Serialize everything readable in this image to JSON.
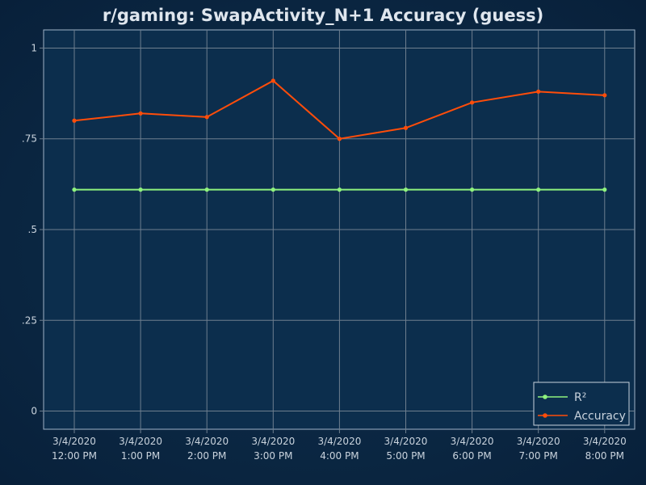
{
  "chart_data": {
    "type": "line",
    "title": "r/gaming: SwapActivity_N+1 Accuracy (guess)",
    "xlabel": "",
    "ylabel": "",
    "categories": [
      [
        "3/4/2020",
        "12:00 PM"
      ],
      [
        "3/4/2020",
        "1:00 PM"
      ],
      [
        "3/4/2020",
        "2:00 PM"
      ],
      [
        "3/4/2020",
        "3:00 PM"
      ],
      [
        "3/4/2020",
        "4:00 PM"
      ],
      [
        "3/4/2020",
        "5:00 PM"
      ],
      [
        "3/4/2020",
        "6:00 PM"
      ],
      [
        "3/4/2020",
        "7:00 PM"
      ],
      [
        "3/4/2020",
        "8:00 PM"
      ]
    ],
    "ylim": [
      -0.05,
      1.05
    ],
    "yticks": [
      {
        "value": 1,
        "label": "1"
      },
      {
        "value": 0.75,
        "label": ".75"
      },
      {
        "value": 0.5,
        "label": ".5"
      },
      {
        "value": 0.25,
        "label": ".25"
      },
      {
        "value": 0,
        "label": "0"
      }
    ],
    "grid": true,
    "legend_position": "bottom-right",
    "series": [
      {
        "name": "R²",
        "color": "#8ef27e",
        "values": [
          0.61,
          0.61,
          0.61,
          0.61,
          0.61,
          0.61,
          0.61,
          0.61,
          0.61
        ]
      },
      {
        "name": "Accuracy",
        "color": "#ff4d0a",
        "values": [
          0.8,
          0.82,
          0.81,
          0.91,
          0.75,
          0.78,
          0.85,
          0.88,
          0.87
        ]
      }
    ],
    "colors": {
      "background": "#0b2743",
      "plot_background": "#0c2e4d",
      "grid": "#6e7f8f",
      "text": "#c9d3dd",
      "title": "#dfe6ee"
    }
  }
}
